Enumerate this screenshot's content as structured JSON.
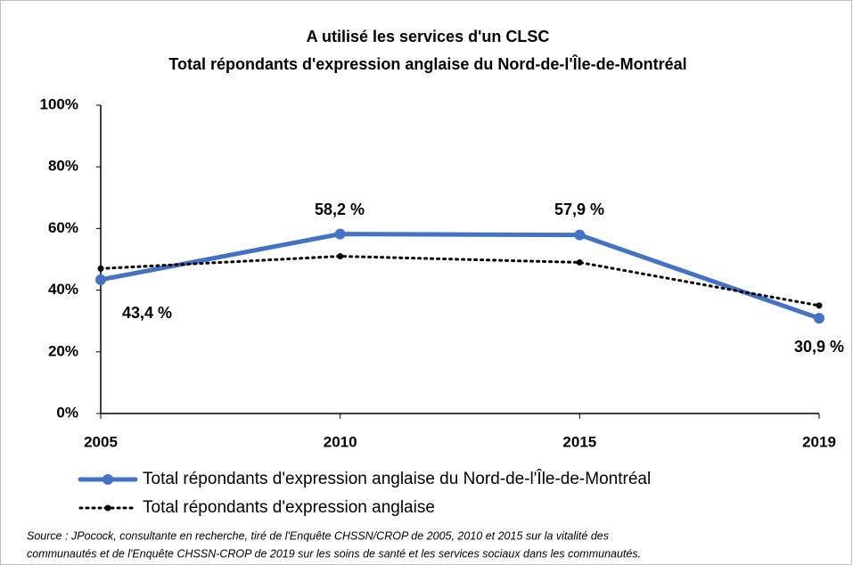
{
  "chart_data": {
    "type": "line",
    "title": [
      "A utilisé les services d'un CLSC",
      "Total répondants d'expression anglaise du Nord-de-l'Île-de-Montréal"
    ],
    "categories": [
      "2005",
      "2010",
      "2015",
      "2019"
    ],
    "series": [
      {
        "name": "Total répondants d'expression anglaise du Nord-de-l'Île-de-Montréal",
        "color": "#4472c4",
        "values": [
          43.4,
          58.2,
          57.9,
          30.9
        ],
        "value_labels": [
          "43,4 %",
          "58,2 %",
          "57,9 %",
          "30,9 %"
        ]
      },
      {
        "name": "Total répondants d'expression anglaise",
        "color": "#000000",
        "values": [
          47,
          51,
          49,
          35
        ]
      }
    ],
    "ylim": [
      0,
      100
    ],
    "yticks": [
      {
        "value": 0,
        "label": "0%"
      },
      {
        "value": 20,
        "label": "20%"
      },
      {
        "value": 40,
        "label": "40%"
      },
      {
        "value": 60,
        "label": "60%"
      },
      {
        "value": 80,
        "label": "80%"
      },
      {
        "value": 100,
        "label": "100%"
      }
    ],
    "source": [
      "Source : JPocock, consultante en recherche, tiré de l'Enquête CHSSN/CROP de 2005, 2010 et 2015 sur la vitalité des",
      "communautés et de l'Enquête CHSSN-CROP de 2019 sur les soins de santé et les services sociaux dans les communautés."
    ]
  }
}
